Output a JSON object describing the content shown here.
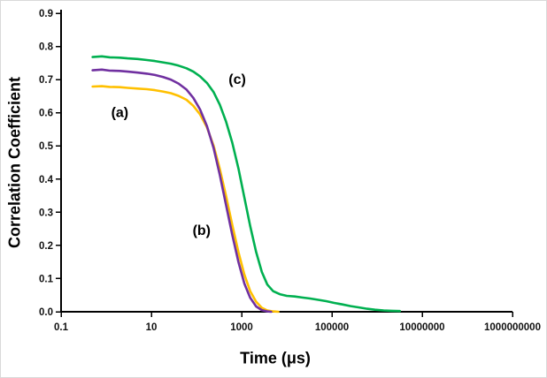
{
  "chart_data": {
    "type": "line",
    "title": "",
    "xlabel": "Time (μs)",
    "ylabel": "Correlation Coefficient",
    "x_scale": "log",
    "xlim": [
      0.1,
      1000000000
    ],
    "ylim": [
      0,
      0.9
    ],
    "grid": false,
    "legend": "none",
    "axis_color": "#000000",
    "x_ticks": [
      {
        "value": 0.1,
        "label": "0.1"
      },
      {
        "value": 10,
        "label": "10"
      },
      {
        "value": 1000,
        "label": "1000"
      },
      {
        "value": 100000,
        "label": "100000"
      },
      {
        "value": 10000000,
        "label": "10000000"
      },
      {
        "value": 1000000000,
        "label": "1000000000"
      }
    ],
    "y_ticks": [
      {
        "value": 0.0,
        "label": "0.0"
      },
      {
        "value": 0.1,
        "label": "0.1"
      },
      {
        "value": 0.2,
        "label": "0.2"
      },
      {
        "value": 0.3,
        "label": "0.3"
      },
      {
        "value": 0.4,
        "label": "0.4"
      },
      {
        "value": 0.5,
        "label": "0.5"
      },
      {
        "value": 0.6,
        "label": "0.6"
      },
      {
        "value": 0.7,
        "label": "0.7"
      },
      {
        "value": 0.8,
        "label": "0.8"
      },
      {
        "value": 0.9,
        "label": "0.9"
      }
    ],
    "series": [
      {
        "id": "a",
        "name": "(a)",
        "color": "#FFC000",
        "points": [
          [
            0.5,
            0.679
          ],
          [
            0.8,
            0.68
          ],
          [
            1.2,
            0.678
          ],
          [
            2,
            0.677
          ],
          [
            3,
            0.675
          ],
          [
            5,
            0.673
          ],
          [
            8,
            0.671
          ],
          [
            12,
            0.668
          ],
          [
            18,
            0.664
          ],
          [
            27,
            0.659
          ],
          [
            40,
            0.651
          ],
          [
            60,
            0.639
          ],
          [
            85,
            0.621
          ],
          [
            120,
            0.595
          ],
          [
            170,
            0.556
          ],
          [
            240,
            0.5
          ],
          [
            330,
            0.43
          ],
          [
            450,
            0.35
          ],
          [
            620,
            0.262
          ],
          [
            850,
            0.18
          ],
          [
            1150,
            0.112
          ],
          [
            1550,
            0.062
          ],
          [
            2100,
            0.03
          ],
          [
            2800,
            0.012
          ],
          [
            3700,
            0.004
          ],
          [
            5000,
            0.001
          ],
          [
            6500,
            0
          ]
        ]
      },
      {
        "id": "b",
        "name": "(b)",
        "color": "#7030A0",
        "points": [
          [
            0.5,
            0.728
          ],
          [
            0.8,
            0.73
          ],
          [
            1.2,
            0.727
          ],
          [
            2,
            0.726
          ],
          [
            3,
            0.724
          ],
          [
            5,
            0.721
          ],
          [
            8,
            0.718
          ],
          [
            12,
            0.714
          ],
          [
            18,
            0.708
          ],
          [
            27,
            0.7
          ],
          [
            40,
            0.688
          ],
          [
            60,
            0.67
          ],
          [
            85,
            0.645
          ],
          [
            120,
            0.61
          ],
          [
            170,
            0.56
          ],
          [
            240,
            0.493
          ],
          [
            330,
            0.412
          ],
          [
            450,
            0.323
          ],
          [
            620,
            0.232
          ],
          [
            850,
            0.15
          ],
          [
            1150,
            0.085
          ],
          [
            1550,
            0.042
          ],
          [
            2100,
            0.016
          ],
          [
            2800,
            0.005
          ],
          [
            3700,
            0.001
          ],
          [
            4500,
            0
          ]
        ]
      },
      {
        "id": "c",
        "name": "(c)",
        "color": "#00B050",
        "points": [
          [
            0.5,
            0.768
          ],
          [
            0.8,
            0.77
          ],
          [
            1.2,
            0.767
          ],
          [
            2,
            0.766
          ],
          [
            3,
            0.764
          ],
          [
            5,
            0.762
          ],
          [
            8,
            0.759
          ],
          [
            12,
            0.756
          ],
          [
            18,
            0.752
          ],
          [
            27,
            0.748
          ],
          [
            40,
            0.742
          ],
          [
            60,
            0.734
          ],
          [
            85,
            0.724
          ],
          [
            120,
            0.71
          ],
          [
            170,
            0.69
          ],
          [
            240,
            0.662
          ],
          [
            330,
            0.624
          ],
          [
            450,
            0.574
          ],
          [
            620,
            0.51
          ],
          [
            850,
            0.432
          ],
          [
            1150,
            0.344
          ],
          [
            1550,
            0.258
          ],
          [
            2100,
            0.18
          ],
          [
            2800,
            0.12
          ],
          [
            3700,
            0.082
          ],
          [
            5000,
            0.062
          ],
          [
            7000,
            0.053
          ],
          [
            10000,
            0.048
          ],
          [
            15000,
            0.046
          ],
          [
            22000,
            0.043
          ],
          [
            33000,
            0.04
          ],
          [
            50000,
            0.036
          ],
          [
            75000,
            0.032
          ],
          [
            110000,
            0.027
          ],
          [
            170000,
            0.022
          ],
          [
            260000,
            0.017
          ],
          [
            400000,
            0.013
          ],
          [
            600000,
            0.009
          ],
          [
            900000,
            0.006
          ],
          [
            1400000,
            0.004
          ],
          [
            2100000,
            0.003
          ],
          [
            3200000,
            0.002
          ]
        ]
      }
    ],
    "annotations": [
      {
        "id": "a",
        "text": "(a)",
        "x": 2,
        "y": 0.6
      },
      {
        "id": "b",
        "text": "(b)",
        "x": 130,
        "y": 0.245
      },
      {
        "id": "c",
        "text": "(c)",
        "x": 800,
        "y": 0.7
      }
    ]
  }
}
